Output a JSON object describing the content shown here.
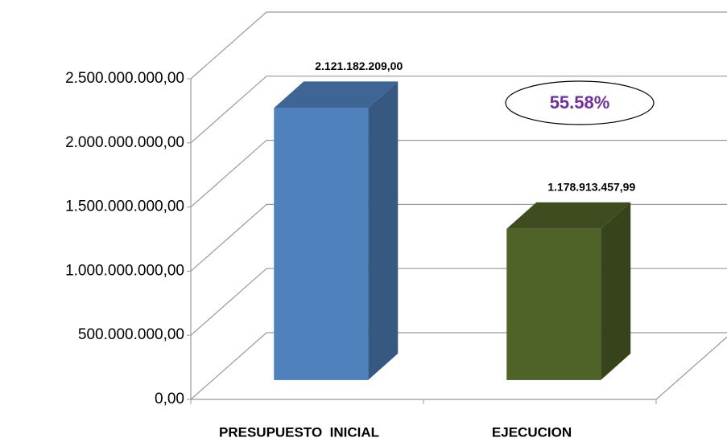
{
  "chart_data": {
    "type": "bar3d",
    "categories": [
      "PRESUPUESTO  INICIAL",
      "EJECUCION"
    ],
    "values": [
      2121182209.0,
      1178913457.99
    ],
    "value_labels": [
      "2.121.182.209,00",
      "1.178.913.457,99"
    ],
    "colors": [
      "#4f81bd",
      "#4f6228"
    ],
    "ylim": [
      0,
      2500000000
    ],
    "yticks": [
      {
        "value": 0,
        "label": "0,00"
      },
      {
        "value": 500000000,
        "label": "500.000.000,00"
      },
      {
        "value": 1000000000,
        "label": "1.000.000.000,00"
      },
      {
        "value": 1500000000,
        "label": "1.500.000.000,00"
      },
      {
        "value": 2000000000,
        "label": "2.000.000.000,00"
      },
      {
        "value": 2500000000,
        "label": "2.500.000.000,00"
      }
    ],
    "grid": true,
    "annotation": "55.58%",
    "annotation_color": "#7030a0"
  }
}
